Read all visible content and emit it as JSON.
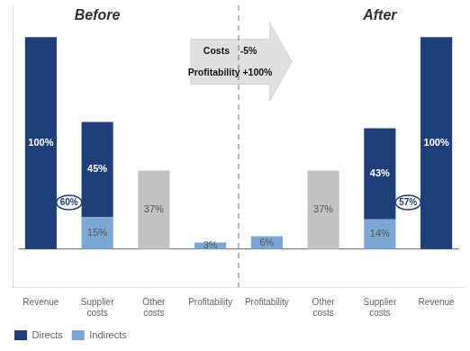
{
  "chart_data": {
    "type": "bar",
    "stacked": true,
    "categories": [
      "Revenue",
      "Supplier\ncosts",
      "Other\ncosts",
      "Profitability",
      "Profitability",
      "Other\ncosts",
      "Supplier\ncosts",
      "Revenue"
    ],
    "series": [
      {
        "name": "Directs",
        "color": "#1F3F7A",
        "values": [
          100,
          45,
          0,
          0,
          0,
          0,
          43,
          100
        ],
        "value_labels": [
          "100%",
          "45%",
          null,
          null,
          null,
          null,
          "43%",
          "100%"
        ]
      },
      {
        "name": "Indirects",
        "color": "#7BA7D4",
        "values": [
          0,
          15,
          0,
          3,
          6,
          0,
          14,
          0
        ],
        "value_labels": [
          null,
          "15%",
          null,
          "3%",
          "6%",
          null,
          "14%",
          null
        ]
      },
      {
        "color": "#C0C2C4",
        "values": [
          0,
          0,
          37,
          0,
          0,
          37,
          0,
          0
        ],
        "value_labels": [
          null,
          null,
          "37%",
          null,
          null,
          "37%",
          null,
          null
        ]
      }
    ],
    "ylim": [
      -18,
      115
    ],
    "tick_labels": "x",
    "grid": false,
    "data_labels": true,
    "legend": "lower left",
    "annotations": [
      "Before",
      "After",
      "Costs    -5%",
      "Profitability +100%",
      "60%",
      "57%"
    ]
  }
}
